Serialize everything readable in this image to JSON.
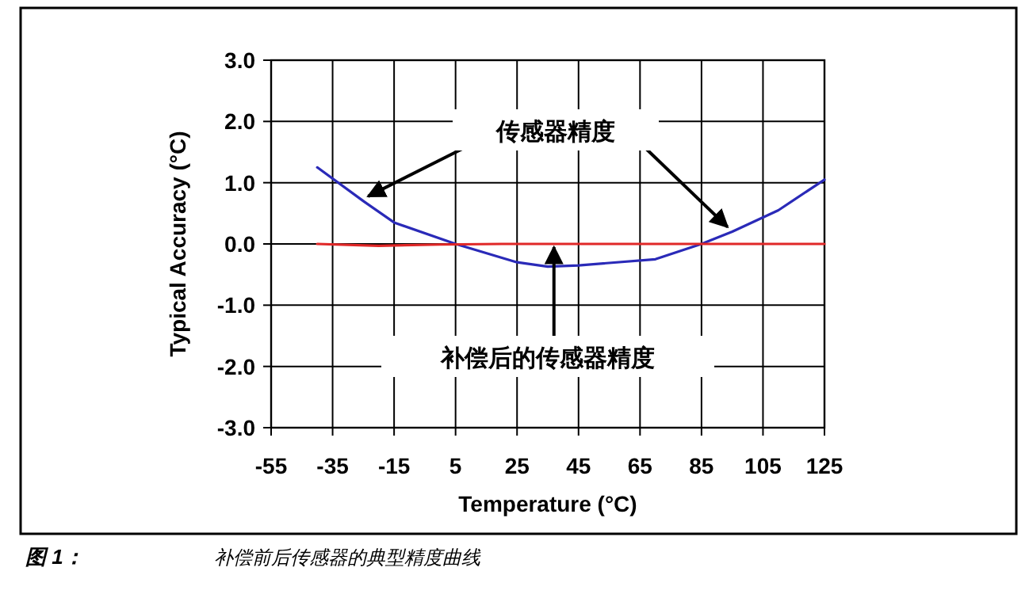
{
  "chart_data": {
    "type": "line",
    "xlabel": "Temperature (°C)",
    "ylabel": "Typical Accuracy (°C)",
    "xlim": [
      -55,
      125
    ],
    "xticks": [
      -55,
      -35,
      -15,
      5,
      25,
      45,
      65,
      85,
      105,
      125
    ],
    "ylim": [
      -3,
      3
    ],
    "yticks": [
      {
        "value": -3,
        "label": "-3.0"
      },
      {
        "value": -2,
        "label": "-2.0"
      },
      {
        "value": -1,
        "label": "-1.0"
      },
      {
        "value": 0,
        "label": "0.0"
      },
      {
        "value": 1,
        "label": "1.0"
      },
      {
        "value": 2,
        "label": "2.0"
      },
      {
        "value": 3,
        "label": "3.0"
      }
    ],
    "grid": true,
    "line_style": "solid",
    "marker": "none",
    "series": [
      {
        "color": "#2a2ab8",
        "x": [
          -40,
          -25,
          -15,
          5,
          25,
          35,
          45,
          70,
          85,
          95,
          110,
          125
        ],
        "values": [
          1.25,
          0.7,
          0.35,
          0.0,
          -0.3,
          -0.37,
          -0.35,
          -0.25,
          0.0,
          0.2,
          0.55,
          1.05
        ]
      },
      {
        "color": "#e02828",
        "x": [
          -40,
          -20,
          0,
          20,
          125
        ],
        "values": [
          0.0,
          -0.03,
          -0.01,
          0.0,
          0.0
        ]
      }
    ],
    "annotations": [
      {
        "text": "传感器精度",
        "x": -25,
        "y": 0.7
      },
      {
        "text": "补偿后的传感器精度",
        "x": 37,
        "y": 0.0
      },
      "图 1：",
      "补偿前后传感器的典型精度曲线"
    ]
  }
}
